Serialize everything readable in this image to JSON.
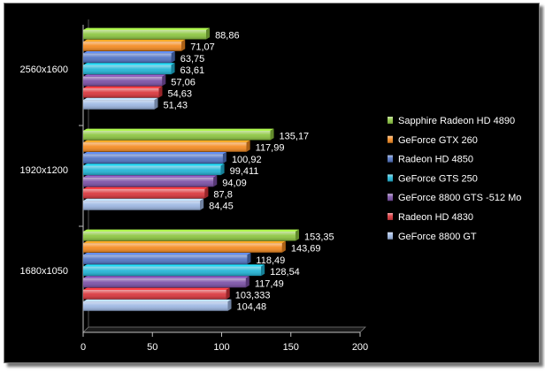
{
  "chart_data": {
    "type": "bar",
    "orientation": "horizontal",
    "categories": [
      "2560x1600",
      "1920x1200",
      "1680x1050"
    ],
    "series": [
      {
        "name": "Sapphire Radeon HD 4890",
        "color": "#8cc63f",
        "values": [
          88.86,
          135.17,
          153.35
        ],
        "labels": [
          "88,86",
          "135,17",
          "153,35"
        ]
      },
      {
        "name": "GeForce GTX 260",
        "color": "#f58a1f",
        "values": [
          71.07,
          117.99,
          143.69
        ],
        "labels": [
          "71,07",
          "117,99",
          "143,69"
        ]
      },
      {
        "name": "Radeon HD 4850",
        "color": "#4f73c4",
        "values": [
          63.75,
          100.92,
          118.49
        ],
        "labels": [
          "63,75",
          "100,92",
          "118,49"
        ]
      },
      {
        "name": "GeForce GTS 250",
        "color": "#1fb5d6",
        "values": [
          63.61,
          99.411,
          128.54
        ],
        "labels": [
          "63,61",
          "99,411",
          "128,54"
        ]
      },
      {
        "name": "GeForce 8800 GTS -512 Mo",
        "color": "#7a4fa6",
        "values": [
          57.06,
          94.09,
          117.49
        ],
        "labels": [
          "57,06",
          "94,09",
          "117,49"
        ]
      },
      {
        "name": "Radeon HD 4830",
        "color": "#d9343a",
        "values": [
          54.63,
          87.8,
          103.333
        ],
        "labels": [
          "54,63",
          "87,8",
          "103,333"
        ]
      },
      {
        "name": "GeForce 8800 GT",
        "color": "#9db7e3",
        "values": [
          51.43,
          84.45,
          104.48
        ],
        "labels": [
          "51,43",
          "84,45",
          "104,48"
        ]
      }
    ],
    "xlim": [
      0,
      200
    ],
    "xticks": [
      0,
      50,
      100,
      150,
      200
    ],
    "grid": false,
    "legend_position": "right",
    "title": "",
    "xlabel": "",
    "ylabel": ""
  }
}
